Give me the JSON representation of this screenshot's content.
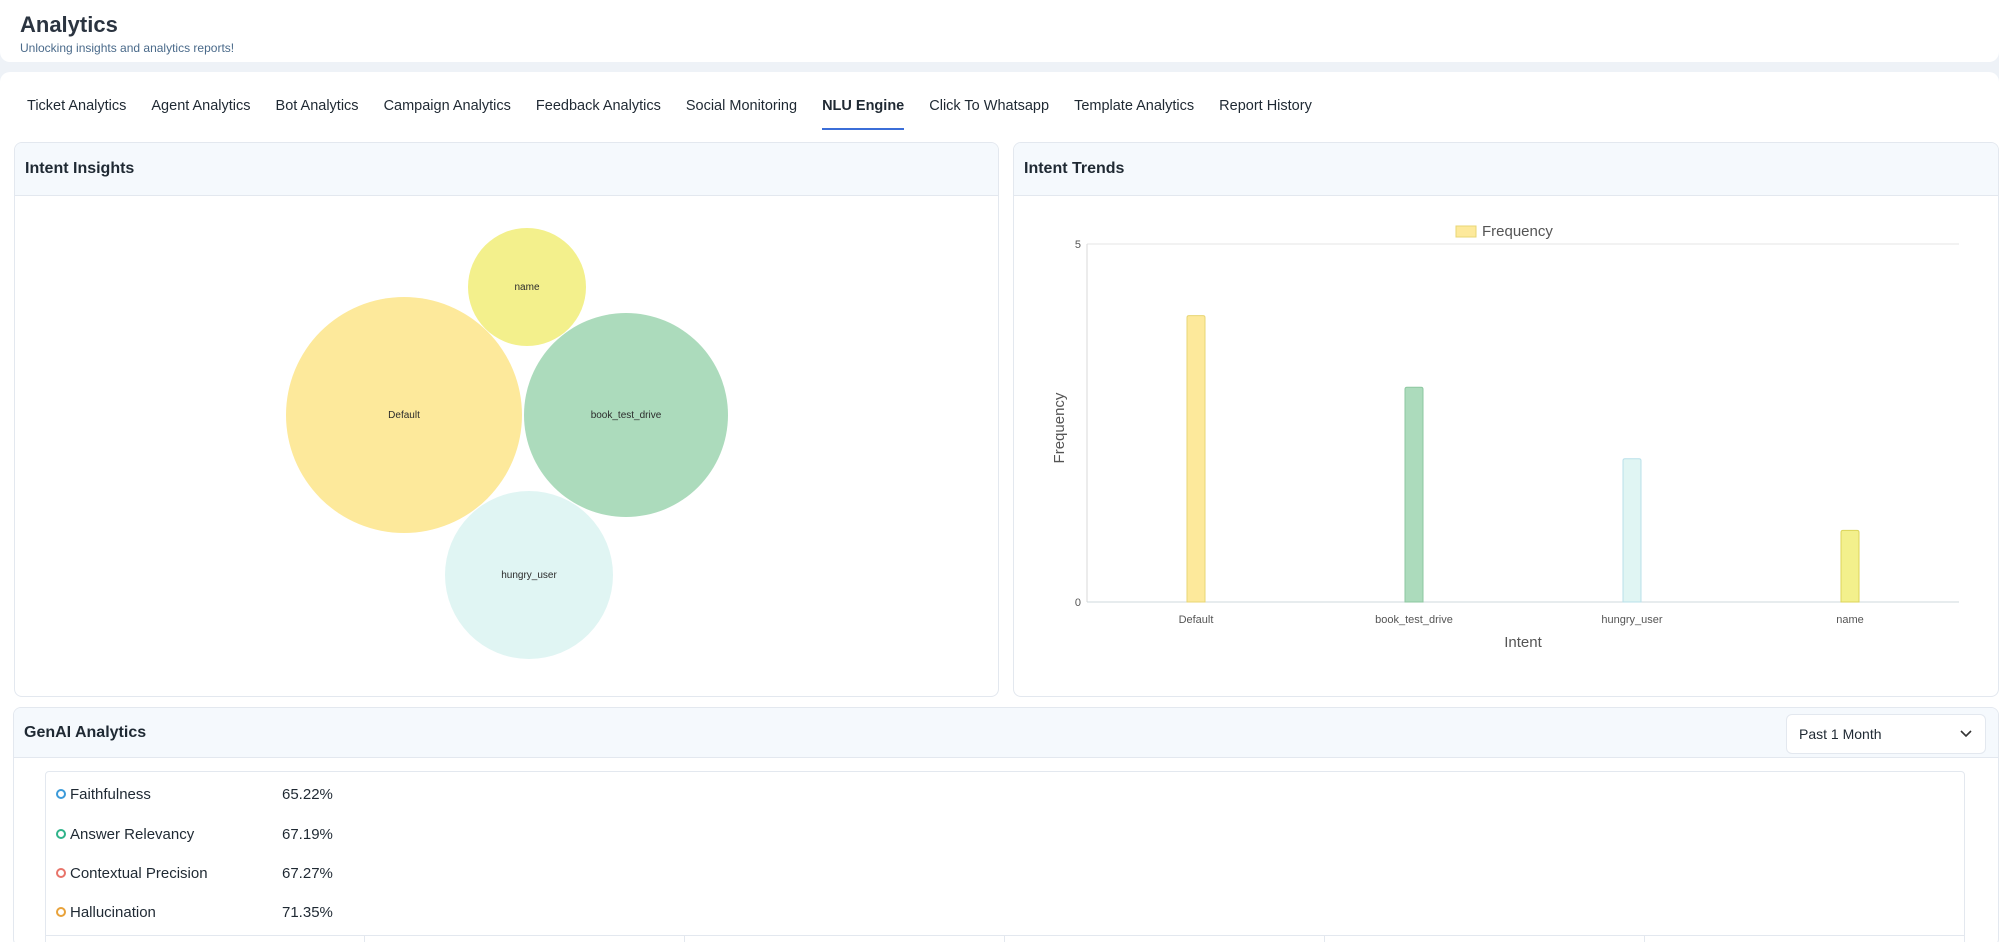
{
  "header": {
    "title": "Analytics",
    "subtitle": "Unlocking insights and analytics reports!"
  },
  "tabs": [
    {
      "label": "Ticket Analytics"
    },
    {
      "label": "Agent Analytics"
    },
    {
      "label": "Bot Analytics"
    },
    {
      "label": "Campaign Analytics"
    },
    {
      "label": "Feedback Analytics"
    },
    {
      "label": "Social Monitoring"
    },
    {
      "label": "NLU Engine",
      "active": true
    },
    {
      "label": "Click To Whatsapp"
    },
    {
      "label": "Template Analytics"
    },
    {
      "label": "Report History"
    }
  ],
  "intent_insights": {
    "title": "Intent Insights",
    "bubbles": [
      {
        "label": "name",
        "color": "#f3f08c"
      },
      {
        "label": "Default",
        "color": "#fde99b"
      },
      {
        "label": "book_test_drive",
        "color": "#acdbbc"
      },
      {
        "label": "hungry_user",
        "color": "#e0f5f3"
      }
    ]
  },
  "intent_trends": {
    "title": "Intent Trends"
  },
  "chart_data": {
    "type": "bar",
    "categories": [
      "Default",
      "book_test_drive",
      "hungry_user",
      "name"
    ],
    "series": [
      {
        "name": "Frequency",
        "values": [
          4,
          3,
          2,
          1
        ],
        "colors": [
          "#fde99b",
          "#acdbbc",
          "#e0f5f3",
          "#f3f08c"
        ],
        "border_colors": [
          "#e8d675",
          "#8dc7a0",
          "#b9e0ea",
          "#dcd55a"
        ]
      }
    ],
    "xlabel": "Intent",
    "ylabel": "Frequency",
    "ylim": [
      0,
      5
    ],
    "yticks": [
      "0",
      "5"
    ],
    "legend": "top-center",
    "grid": true
  },
  "genai": {
    "title": "GenAI Analytics",
    "period": "Past 1 Month",
    "metrics": [
      {
        "name": "Faithfulness",
        "value": "65.22%",
        "color": "#3b9ad9"
      },
      {
        "name": "Answer Relevancy",
        "value": "67.19%",
        "color": "#2fb38a"
      },
      {
        "name": "Contextual Precision",
        "value": "67.27%",
        "color": "#e8746a"
      },
      {
        "name": "Hallucination",
        "value": "71.35%",
        "color": "#e8a23a"
      }
    ]
  }
}
